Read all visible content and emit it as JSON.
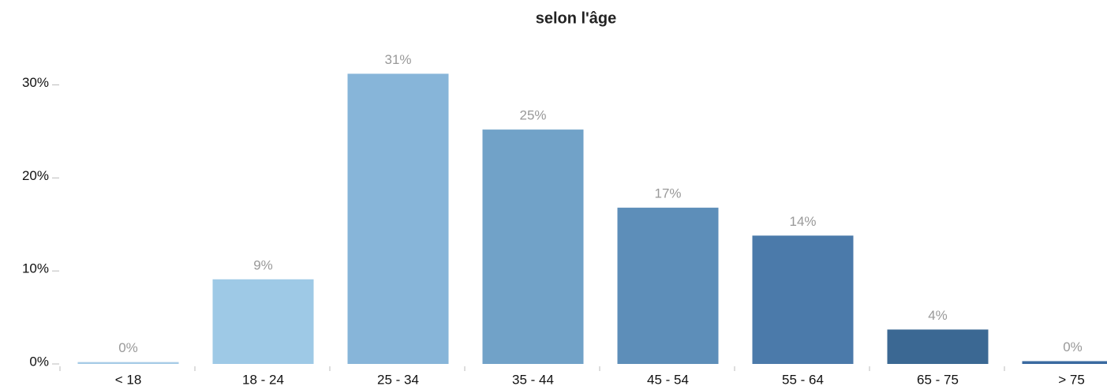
{
  "chart_data": {
    "type": "bar",
    "title": "selon l'âge",
    "categories": [
      "< 18",
      "18 - 24",
      "25 - 34",
      "35 - 44",
      "45 - 54",
      "55 - 64",
      "65 - 75",
      "> 75"
    ],
    "values": [
      0.2,
      9.1,
      31.2,
      25.2,
      16.8,
      13.8,
      3.7,
      0.3
    ],
    "value_labels": [
      "0%",
      "9%",
      "31%",
      "25%",
      "17%",
      "14%",
      "4%",
      "0%"
    ],
    "colors": [
      "#a6cbe6",
      "#9ec9e6",
      "#87b5d9",
      "#71a2c8",
      "#5d8eb9",
      "#4b7aaa",
      "#3b6893",
      "#3a6aa0"
    ],
    "ylim": [
      0,
      32
    ],
    "yticks": [
      {
        "value": 0,
        "label": "0%"
      },
      {
        "value": 10,
        "label": "10%"
      },
      {
        "value": 20,
        "label": "20%"
      },
      {
        "value": 30,
        "label": "30%"
      }
    ]
  }
}
